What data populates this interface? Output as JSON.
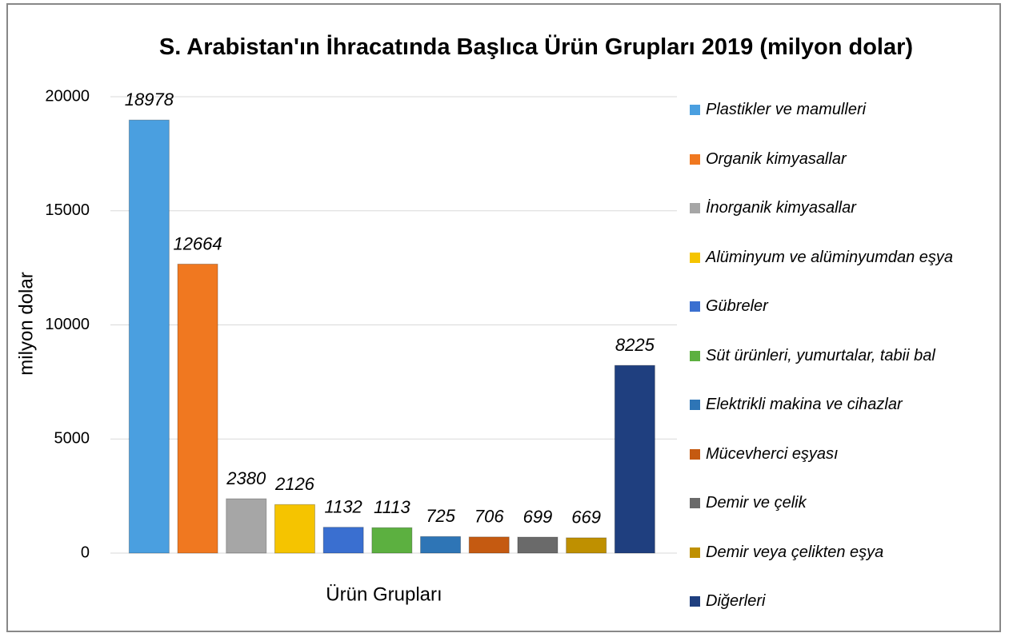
{
  "chart_data": {
    "type": "bar",
    "title": "S. Arabistan'ın İhracatında Başlıca Ürün Grupları 2019 (milyon dolar)",
    "xlabel": "Ürün Grupları",
    "ylabel": "milyon dolar",
    "categories": [
      "Plastikler ve mamulleri",
      "Organik kimyasallar",
      "İnorganik kimyasallar",
      "Alüminyum ve alüminyumdan eşya",
      "Gübreler",
      "Süt ürünleri, yumurtalar, tabii bal",
      "Elektrikli makina ve cihazlar",
      "Mücevherci eşyası",
      "Demir ve çelik",
      "Demir veya çelikten eşya",
      "Diğerleri"
    ],
    "values": [
      18978,
      12664,
      2380,
      2126,
      1132,
      1113,
      725,
      706,
      699,
      669,
      8225
    ],
    "colors": [
      "#4a9fe0",
      "#f07820",
      "#a6a6a6",
      "#f5c400",
      "#3a6fd0",
      "#5cb040",
      "#2e75b6",
      "#c55a11",
      "#6a6a6a",
      "#bf9000",
      "#1f3f7f"
    ],
    "ylim": [
      0,
      20000
    ],
    "yticks": [
      0,
      5000,
      10000,
      15000,
      20000
    ],
    "grid": true,
    "legend": "right"
  }
}
